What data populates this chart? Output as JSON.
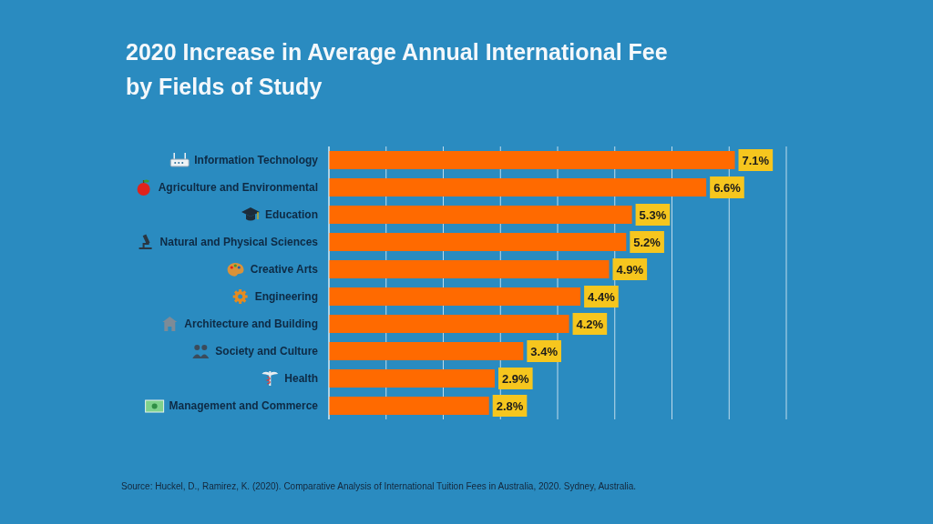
{
  "chart_data": {
    "type": "bar",
    "orientation": "horizontal",
    "title": "2020 Increase in Average Annual International Fee by Fields of Study",
    "categories": [
      "Information Technology",
      "Agriculture and Environmental",
      "Education",
      "Natural and Physical Sciences",
      "Creative Arts",
      "Engineering",
      "Architecture and Building",
      "Society and Culture",
      "Health",
      "Management and Commerce"
    ],
    "values": [
      7.1,
      6.6,
      5.3,
      5.2,
      4.9,
      4.4,
      4.2,
      3.4,
      2.9,
      2.8
    ],
    "value_labels": [
      "7.1%",
      "6.6%",
      "5.3%",
      "5.2%",
      "4.9%",
      "4.4%",
      "4.2%",
      "3.4%",
      "2.9%",
      "2.8%"
    ],
    "color": "#ff6a00",
    "xlim": [
      0,
      8
    ],
    "xticks": [
      {
        "value": 0,
        "label": null
      },
      {
        "value": 1,
        "label": null
      },
      {
        "value": 2,
        "label": null
      },
      {
        "value": 3,
        "label": null
      },
      {
        "value": 4,
        "label": null
      },
      {
        "value": 5,
        "label": null
      },
      {
        "value": 6,
        "label": null
      },
      {
        "value": 7,
        "label": null
      },
      {
        "value": 8,
        "label": null
      }
    ],
    "grid": "x",
    "tick_labels": "y",
    "annotations": [
      "Source: Huckel, D., Ramirez, K. (2020). Comparative Analysis of International Tuition Fees in Australia, 2020. Sydney, Australia."
    ]
  }
}
